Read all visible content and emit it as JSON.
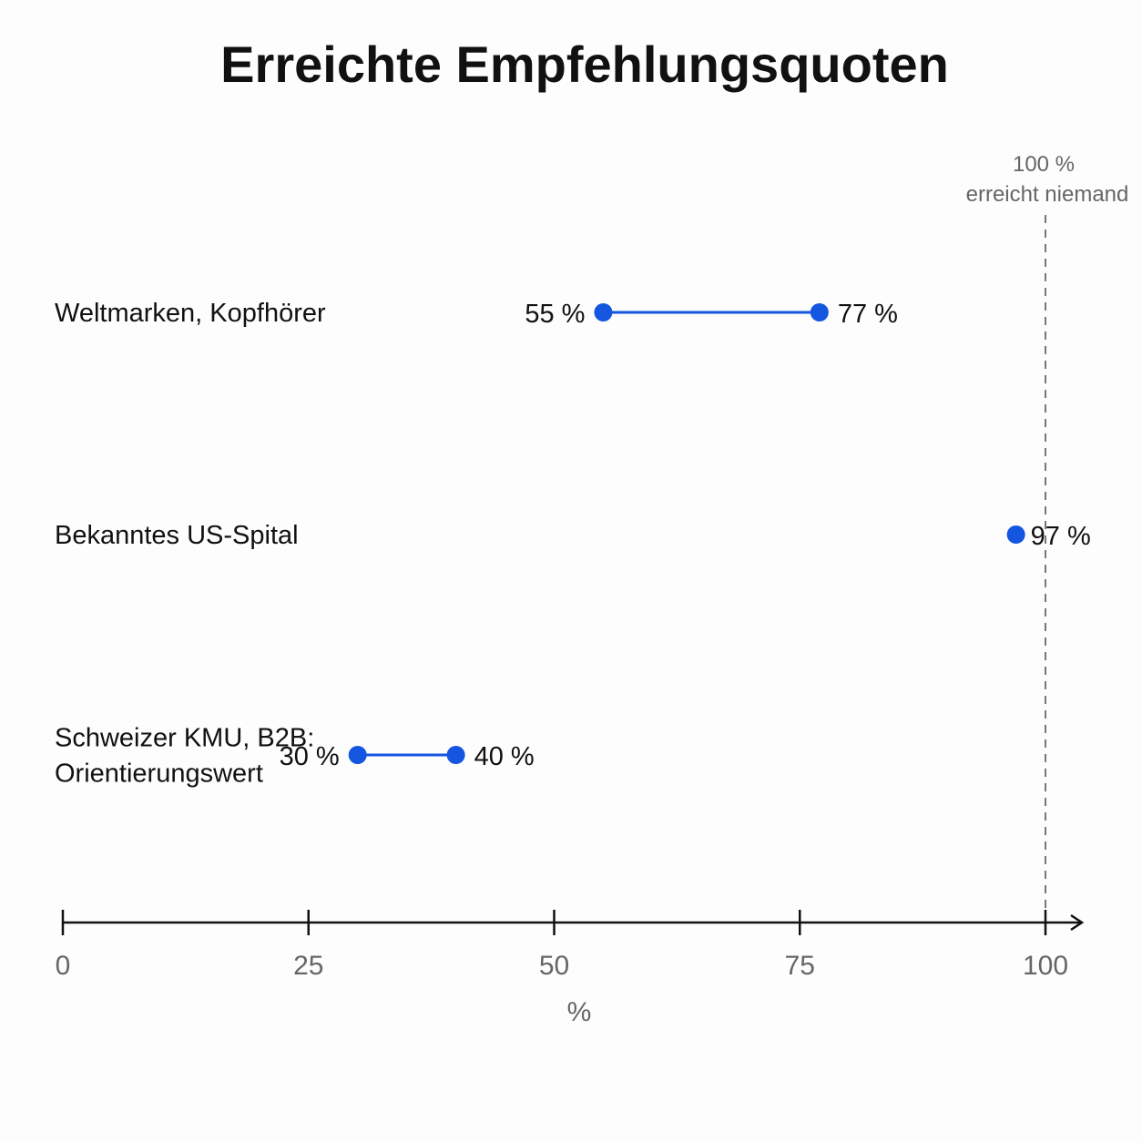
{
  "chart_data": {
    "type": "dumbbell",
    "title": "Erreichte Empfehlungsquoten",
    "xlabel": "%",
    "xlim": [
      0,
      100
    ],
    "xticks": [
      "0",
      "25",
      "50",
      "75",
      "100"
    ],
    "color": "#1456e0",
    "reference": {
      "x": 100,
      "label_line1": "100 %",
      "label_line2": "erreicht niemand"
    },
    "rows": [
      {
        "category_lines": [
          "Weltmarken, Kopfhörer"
        ],
        "low": 55,
        "high": 77,
        "low_label": "55 %",
        "high_label": "77 %"
      },
      {
        "category_lines": [
          "Bekanntes US-Spital"
        ],
        "value": 97,
        "value_label": "97 %"
      },
      {
        "category_lines": [
          "Schweizer KMU, B2B:",
          "Orientierungswert"
        ],
        "low": 30,
        "high": 40,
        "low_label": "30 %",
        "high_label": "40 %"
      }
    ]
  }
}
